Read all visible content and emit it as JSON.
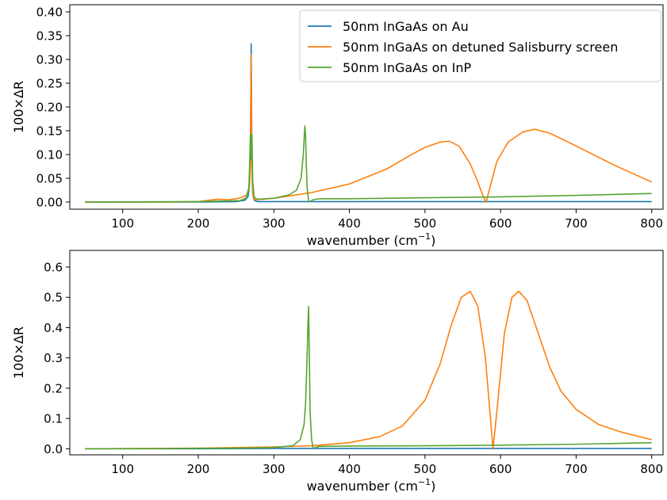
{
  "chart_data": [
    {
      "type": "line",
      "xlabel": "wavenumber (cm",
      "xlabel_sup": "−1",
      "xlabel_end": ")",
      "ylabel": "100×ΔR",
      "xlim": [
        30,
        815
      ],
      "ylim": [
        -0.015,
        0.415
      ],
      "xticks": [
        100,
        200,
        300,
        400,
        500,
        600,
        700,
        800
      ],
      "yticks": [
        0.0,
        0.05,
        0.1,
        0.15,
        0.2,
        0.25,
        0.3,
        0.35,
        0.4
      ],
      "ytick_labels": [
        "0.00",
        "0.05",
        "0.10",
        "0.15",
        "0.20",
        "0.25",
        "0.30",
        "0.35",
        "0.40"
      ],
      "legend_position": "top-right",
      "series": [
        {
          "name": "50nm InGaAs on Au",
          "color": "#1f77b4",
          "x": [
            50,
            200,
            250,
            262,
            266,
            268,
            269,
            270,
            271,
            272,
            274,
            278,
            300,
            400,
            500,
            600,
            700,
            800
          ],
          "y": [
            0.0,
            0.0,
            0.001,
            0.004,
            0.012,
            0.04,
            0.12,
            0.333,
            0.09,
            0.02,
            0.004,
            0.001,
            0.001,
            0.001,
            0.001,
            0.001,
            0.001,
            0.001
          ]
        },
        {
          "name": "50nm InGaAs on detuned Salisburry screen",
          "color": "#ff7f0e",
          "x": [
            50,
            150,
            200,
            225,
            240,
            250,
            258,
            264,
            266,
            268,
            269,
            270,
            271,
            272,
            273,
            275,
            280,
            300,
            350,
            400,
            450,
            480,
            500,
            520,
            532,
            545,
            560,
            570,
            577,
            581,
            585,
            595,
            610,
            630,
            645,
            665,
            700,
            750,
            800
          ],
          "y": [
            0.0,
            0.0,
            0.001,
            0.006,
            0.005,
            0.007,
            0.01,
            0.015,
            0.022,
            0.04,
            0.08,
            0.31,
            0.06,
            0.02,
            0.008,
            0.005,
            0.005,
            0.008,
            0.02,
            0.038,
            0.07,
            0.098,
            0.115,
            0.126,
            0.128,
            0.118,
            0.08,
            0.042,
            0.012,
            0.0,
            0.025,
            0.085,
            0.126,
            0.148,
            0.153,
            0.145,
            0.118,
            0.078,
            0.042
          ]
        },
        {
          "name": "50nm InGaAs on InP",
          "color": "#55a630",
          "x": [
            50,
            200,
            255,
            263,
            267,
            268,
            269,
            270,
            271,
            272,
            274,
            278,
            300,
            320,
            330,
            336,
            339,
            341,
            342,
            343,
            344,
            346,
            348,
            352,
            360,
            400,
            500,
            600,
            700,
            800
          ],
          "y": [
            0.0,
            0.001,
            0.003,
            0.008,
            0.03,
            0.08,
            0.142,
            0.09,
            0.142,
            0.045,
            0.01,
            0.006,
            0.008,
            0.015,
            0.025,
            0.05,
            0.1,
            0.16,
            0.14,
            0.08,
            0.03,
            0.003,
            0.001,
            0.005,
            0.007,
            0.007,
            0.009,
            0.011,
            0.014,
            0.018
          ]
        }
      ]
    },
    {
      "type": "line",
      "xlabel": "wavenumber (cm",
      "xlabel_sup": "−1",
      "xlabel_end": ")",
      "ylabel": "100×ΔR",
      "xlim": [
        30,
        815
      ],
      "ylim": [
        -0.02,
        0.655
      ],
      "xticks": [
        100,
        200,
        300,
        400,
        500,
        600,
        700,
        800
      ],
      "yticks": [
        0.0,
        0.1,
        0.2,
        0.3,
        0.4,
        0.5,
        0.6
      ],
      "ytick_labels": [
        "0.0",
        "0.1",
        "0.2",
        "0.3",
        "0.4",
        "0.5",
        "0.6"
      ],
      "series": [
        {
          "name": "50nm InGaAs on Au",
          "color": "#1f77b4",
          "x": [
            50,
            200,
            300,
            400,
            500,
            600,
            700,
            800
          ],
          "y": [
            0.0,
            0.0,
            0.001,
            0.001,
            0.001,
            0.001,
            0.001,
            0.001
          ]
        },
        {
          "name": "50nm InGaAs on detuned Salisburry screen",
          "color": "#ff7f0e",
          "x": [
            50,
            150,
            200,
            250,
            300,
            350,
            400,
            440,
            470,
            500,
            520,
            535,
            548,
            560,
            570,
            580,
            585,
            590,
            595,
            605,
            615,
            624,
            635,
            650,
            665,
            680,
            700,
            730,
            760,
            800
          ],
          "y": [
            0.0,
            0.001,
            0.002,
            0.004,
            0.006,
            0.01,
            0.02,
            0.04,
            0.075,
            0.16,
            0.28,
            0.41,
            0.5,
            0.52,
            0.47,
            0.3,
            0.15,
            0.0,
            0.12,
            0.38,
            0.5,
            0.52,
            0.49,
            0.38,
            0.27,
            0.19,
            0.13,
            0.08,
            0.055,
            0.03
          ]
        },
        {
          "name": "50nm InGaAs on InP",
          "color": "#55a630",
          "x": [
            50,
            250,
            300,
            325,
            335,
            340,
            342,
            344,
            345,
            346,
            347,
            348,
            350,
            352,
            360,
            400,
            500,
            600,
            700,
            800
          ],
          "y": [
            0.0,
            0.002,
            0.004,
            0.01,
            0.03,
            0.08,
            0.15,
            0.3,
            0.4,
            0.47,
            0.3,
            0.12,
            0.03,
            0.002,
            0.008,
            0.009,
            0.01,
            0.012,
            0.015,
            0.02
          ]
        }
      ]
    }
  ]
}
